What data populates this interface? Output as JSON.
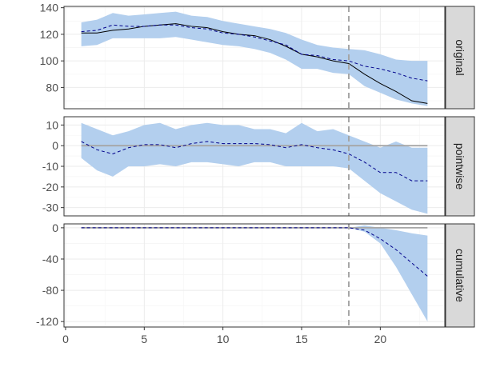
{
  "chart_data": {
    "type": "line",
    "title": "",
    "xlabel": "",
    "ylabel": "",
    "x_ticks": [
      0,
      5,
      10,
      15,
      20
    ],
    "xlim": [
      -0.1,
      24.1
    ],
    "vline_x": 18,
    "x": [
      1,
      2,
      3,
      4,
      5,
      6,
      7,
      8,
      9,
      10,
      11,
      12,
      13,
      14,
      15,
      16,
      17,
      18,
      19,
      20,
      21,
      22,
      23
    ],
    "colors": {
      "band": "#b3cfee",
      "actual": "#000000",
      "predicted": "#00008b",
      "zero_line": "#a6a6a6",
      "vline": "#a6a6a6",
      "strip_bg": "#d9d9d9",
      "grid_major": "#ebebeb",
      "grid_minor": "#f5f5f5"
    },
    "panels": [
      {
        "strip": "original",
        "ylim": [
          64,
          141
        ],
        "y_ticks": [
          80,
          100,
          120,
          140
        ],
        "y_labels": [
          "80",
          "100",
          "120",
          "140"
        ],
        "zero_line": false,
        "band_upper": [
          129,
          131,
          136,
          134,
          135,
          136,
          137,
          134,
          133,
          130,
          128,
          126,
          124,
          121,
          116,
          112,
          110,
          109,
          108,
          105,
          101,
          100,
          100
        ],
        "band_lower": [
          111,
          112,
          117,
          117,
          117,
          117,
          118,
          116,
          114,
          112,
          111,
          109,
          106,
          101,
          94,
          94,
          91,
          90,
          81,
          76,
          71,
          68,
          66
        ],
        "actual": [
          121,
          121,
          123,
          124,
          126,
          127,
          128,
          126,
          125,
          122,
          120,
          119,
          116,
          111,
          105,
          103,
          100,
          98,
          90,
          83,
          77,
          70,
          68
        ],
        "predicted": [
          122,
          123,
          127,
          126,
          126,
          127,
          127,
          125,
          124,
          121,
          120,
          118,
          115,
          112,
          105,
          104,
          101,
          100,
          96,
          94,
          91,
          87,
          85
        ]
      },
      {
        "strip": "pointwise",
        "ylim": [
          -34,
          14
        ],
        "y_ticks": [
          -30,
          -20,
          -10,
          0,
          10
        ],
        "y_labels": [
          "-30",
          "-20",
          "-10",
          "0",
          "10"
        ],
        "zero_line": true,
        "band_upper": [
          11,
          8,
          5,
          7,
          10,
          11,
          8,
          10,
          11,
          10,
          10,
          8,
          8,
          6,
          11,
          7,
          8,
          5,
          2,
          -1,
          2,
          -1,
          -1
        ],
        "band_lower": [
          -6,
          -12,
          -15,
          -10,
          -10,
          -9,
          -10,
          -8,
          -8,
          -9,
          -10,
          -8,
          -8,
          -10,
          -10,
          -10,
          -10,
          -11,
          -17,
          -23,
          -27,
          -31,
          -33
        ],
        "actual": [
          0,
          0,
          0,
          0,
          0,
          0,
          0,
          0,
          0,
          0,
          0,
          0,
          0,
          0,
          0,
          0,
          0,
          0,
          0,
          0,
          0,
          0,
          0
        ],
        "predicted": [
          2,
          -2,
          -4,
          -1,
          0.5,
          0.5,
          -1,
          1,
          2,
          1,
          1,
          1,
          0.5,
          -1,
          0.5,
          -1,
          -2,
          -4,
          -8,
          -13,
          -13,
          -17,
          -17
        ]
      },
      {
        "strip": "cumulative",
        "ylim": [
          -127,
          5
        ],
        "y_ticks": [
          -120,
          -80,
          -40,
          0
        ],
        "y_labels": [
          "-120",
          "-80",
          "-40",
          "0"
        ],
        "zero_line": true,
        "band_upper": [
          0,
          0,
          0,
          0,
          0,
          0,
          0,
          0,
          0,
          0,
          0,
          0,
          0,
          0,
          0,
          0,
          0,
          0,
          3,
          0,
          -3,
          -7,
          -10
        ],
        "band_lower": [
          0,
          0,
          0,
          0,
          0,
          0,
          0,
          0,
          0,
          0,
          0,
          0,
          0,
          0,
          0,
          0,
          0,
          0,
          -5,
          -20,
          -50,
          -85,
          -120
        ],
        "actual": [
          0,
          0,
          0,
          0,
          0,
          0,
          0,
          0,
          0,
          0,
          0,
          0,
          0,
          0,
          0,
          0,
          0,
          0,
          0,
          0,
          0,
          0,
          0
        ],
        "predicted": [
          0,
          0,
          0,
          0,
          0,
          0,
          0,
          0,
          0,
          0,
          0,
          0,
          0,
          0,
          0,
          0,
          0,
          0,
          -3,
          -14,
          -28,
          -45,
          -62
        ]
      }
    ]
  }
}
